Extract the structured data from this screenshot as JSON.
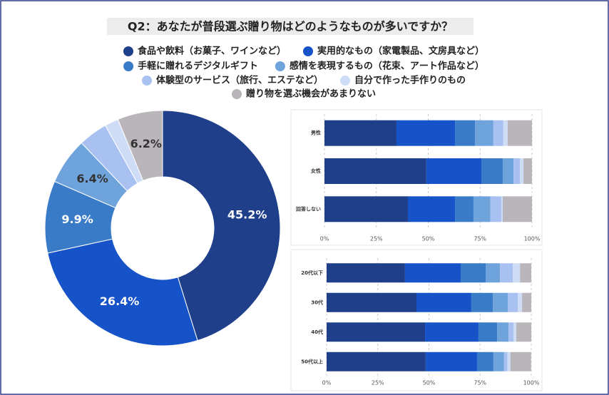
{
  "chart_data": [
    {
      "type": "donut",
      "title": "Q2：あなたが普段選ぶ贈り物はどのようなものが多いですか？",
      "categories": [
        "食品や飲料（お菓子、ワインなど）",
        "実用的なもの（家電製品、文房具など）",
        "手軽に贈れるデジタルギフト",
        "感情を表現するもの（花束、アート作品など）",
        "体験型のサービス（旅行、エステなど）",
        "自分で作った手作りのもの",
        "贈り物を選ぶ機会があまりない"
      ],
      "values": [
        45.2,
        26.4,
        9.9,
        6.4,
        4.0,
        1.9,
        6.2
      ],
      "value_labels": [
        "45.2%",
        "26.4%",
        "9.9%",
        "6.4%",
        null,
        null,
        "6.2%"
      ],
      "colors": [
        "#1f3f8a",
        "#1652c8",
        "#3a7bc8",
        "#6fa3dc",
        "#a9c1f0",
        "#cfdcf5",
        "#b9b5ba"
      ],
      "legend": "top"
    },
    {
      "type": "bar",
      "orientation": "horizontal",
      "stacked": true,
      "categories": [
        "男性",
        "女性",
        "回答しない"
      ],
      "series": [
        {
          "color": "#1f3f8a",
          "values": [
            34.7,
            49.1,
            40.2
          ]
        },
        {
          "color": "#1652c8",
          "values": [
            28.2,
            26.5,
            22.7
          ]
        },
        {
          "color": "#3a7bc8",
          "values": [
            9.6,
            10.3,
            8.9
          ]
        },
        {
          "color": "#6fa3dc",
          "values": [
            8.9,
            5.2,
            8.2
          ]
        },
        {
          "color": "#a9c1f0",
          "values": [
            4.8,
            3.1,
            5.2
          ]
        },
        {
          "color": "#cfdcf5",
          "values": [
            2.1,
            1.7,
            0.7
          ]
        },
        {
          "color": "#b9b5ba",
          "values": [
            11.7,
            4.1,
            14.1
          ]
        }
      ],
      "xlim": [
        0,
        100
      ],
      "xticks": [
        {
          "value": 0,
          "label": "0%"
        },
        {
          "value": 25,
          "label": "25%"
        },
        {
          "value": 50,
          "label": "50%"
        },
        {
          "value": 75,
          "label": "75%"
        },
        {
          "value": 100,
          "label": "100%"
        }
      ],
      "grid": true
    },
    {
      "type": "bar",
      "orientation": "horizontal",
      "stacked": true,
      "categories": [
        "20代以下",
        "30代",
        "40代",
        "50代以上"
      ],
      "series": [
        {
          "color": "#1f3f8a",
          "values": [
            38.3,
            43.9,
            48.1,
            48.4
          ]
        },
        {
          "color": "#1652c8",
          "values": [
            27.2,
            26.8,
            26.1,
            25.1
          ]
        },
        {
          "color": "#3a7bc8",
          "values": [
            12.2,
            10.5,
            9.1,
            8.0
          ]
        },
        {
          "color": "#6fa3dc",
          "values": [
            7.0,
            7.3,
            5.6,
            5.2
          ]
        },
        {
          "color": "#a9c1f0",
          "values": [
            6.3,
            4.9,
            2.4,
            1.7
          ]
        },
        {
          "color": "#cfdcf5",
          "values": [
            3.5,
            2.1,
            1.4,
            1.4
          ]
        },
        {
          "color": "#b9b5ba",
          "values": [
            5.5,
            4.5,
            7.3,
            10.1
          ]
        }
      ],
      "xlim": [
        0,
        100
      ],
      "xticks": [
        {
          "value": 0,
          "label": "0%"
        },
        {
          "value": 25,
          "label": "25%"
        },
        {
          "value": 50,
          "label": "50%"
        },
        {
          "value": 75,
          "label": "75%"
        },
        {
          "value": 100,
          "label": "100%"
        }
      ],
      "grid": true
    }
  ]
}
